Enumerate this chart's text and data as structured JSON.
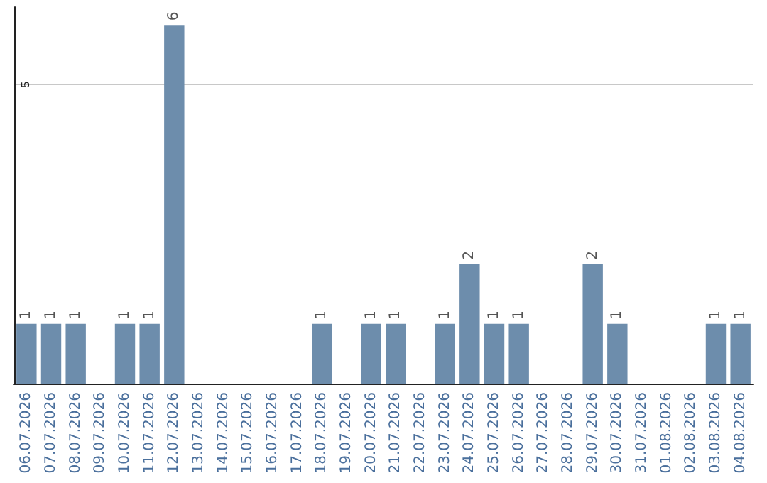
{
  "chart_data": {
    "type": "bar",
    "categories": [
      "06.07.2026",
      "07.07.2026",
      "08.07.2026",
      "09.07.2026",
      "10.07.2026",
      "11.07.2026",
      "12.07.2026",
      "13.07.2026",
      "14.07.2026",
      "15.07.2026",
      "16.07.2026",
      "17.07.2026",
      "18.07.2026",
      "19.07.2026",
      "20.07.2026",
      "21.07.2026",
      "22.07.2026",
      "23.07.2026",
      "24.07.2026",
      "25.07.2026",
      "26.07.2026",
      "27.07.2026",
      "28.07.2026",
      "29.07.2026",
      "30.07.2026",
      "31.07.2026",
      "01.08.2026",
      "02.08.2026",
      "03.08.2026",
      "04.08.2026"
    ],
    "values": [
      1,
      1,
      1,
      0,
      1,
      1,
      6,
      0,
      0,
      0,
      0,
      0,
      1,
      0,
      1,
      1,
      0,
      1,
      2,
      1,
      1,
      0,
      0,
      2,
      1,
      0,
      0,
      0,
      1,
      1
    ],
    "value_labels": [
      "1",
      "1",
      "1",
      null,
      "1",
      "1",
      "6",
      null,
      null,
      null,
      null,
      null,
      "1",
      null,
      "1",
      "1",
      null,
      "1",
      "2",
      "1",
      "1",
      null,
      null,
      "2",
      "1",
      null,
      null,
      null,
      "1",
      "1"
    ],
    "color": "#6d8dac",
    "ylim": [
      0,
      6.3
    ],
    "yticks": [
      5
    ],
    "grid": "y"
  }
}
